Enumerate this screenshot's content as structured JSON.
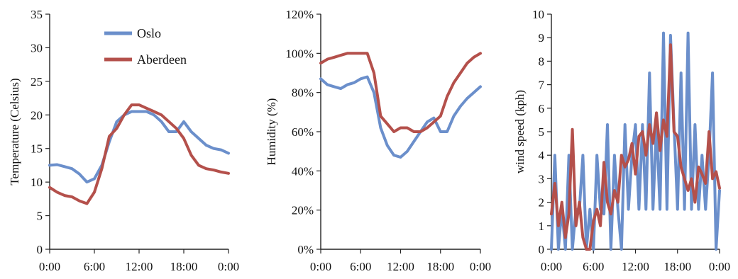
{
  "colors": {
    "oslo": "#6b8fcb",
    "aberdeen": "#b4504b"
  },
  "legend": [
    "Oslo",
    "Aberdeen"
  ],
  "chart_data": [
    {
      "type": "line",
      "ylabel": "Temperature (Celsius)",
      "ylim": [
        0,
        35
      ],
      "yticks": [
        "0",
        "5",
        "10",
        "15",
        "20",
        "25",
        "30",
        "35"
      ],
      "xlim": [
        0,
        24
      ],
      "xticks": [
        "0:00",
        "6:00",
        "12:00",
        "18:00",
        "0:00"
      ],
      "legend_placement": "top-left",
      "series": [
        {
          "name": "Oslo",
          "x": [
            0,
            1,
            2,
            3,
            4,
            5,
            6,
            7,
            8,
            9,
            10,
            11,
            12,
            13,
            14,
            15,
            16,
            17,
            18,
            19,
            20,
            21,
            22,
            23,
            24
          ],
          "y": [
            12.5,
            12.6,
            12.3,
            12.0,
            11.2,
            10.0,
            10.5,
            12.5,
            16.0,
            19.0,
            20.0,
            20.5,
            20.5,
            20.5,
            20.0,
            19.0,
            17.5,
            17.5,
            19.0,
            17.5,
            16.5,
            15.5,
            15.0,
            14.8,
            14.3
          ]
        },
        {
          "name": "Aberdeen",
          "x": [
            0,
            1,
            2,
            3,
            4,
            5,
            6,
            7,
            8,
            9,
            10,
            11,
            12,
            13,
            14,
            15,
            16,
            17,
            18,
            19,
            20,
            21,
            22,
            23,
            24
          ],
          "y": [
            9.2,
            8.5,
            8.0,
            7.8,
            7.2,
            6.8,
            8.5,
            12.0,
            16.8,
            18.0,
            20.0,
            21.5,
            21.5,
            21.0,
            20.5,
            20.0,
            19.0,
            18.0,
            16.5,
            14.0,
            12.5,
            12.0,
            11.8,
            11.5,
            11.3
          ]
        }
      ]
    },
    {
      "type": "line",
      "ylabel": "Humidity (%)",
      "ylim": [
        0,
        120
      ],
      "yticks": [
        "0%",
        "20%",
        "40%",
        "60%",
        "80%",
        "100%",
        "120%"
      ],
      "xlim": [
        0,
        24
      ],
      "xticks": [
        "0:00",
        "6:00",
        "12:00",
        "18:00",
        "0:00"
      ],
      "series": [
        {
          "name": "Oslo",
          "x": [
            0,
            1,
            2,
            3,
            4,
            5,
            6,
            7,
            8,
            9,
            10,
            11,
            12,
            13,
            14,
            15,
            16,
            17,
            18,
            19,
            20,
            21,
            22,
            23,
            24
          ],
          "y": [
            87,
            84,
            83,
            82,
            84,
            85,
            87,
            88,
            80,
            62,
            53,
            48,
            47,
            50,
            55,
            60,
            65,
            67,
            60,
            60,
            68,
            73,
            77,
            80,
            83
          ]
        },
        {
          "name": "Aberdeen",
          "x": [
            0,
            1,
            2,
            3,
            4,
            5,
            6,
            7,
            8,
            9,
            10,
            11,
            12,
            13,
            14,
            15,
            16,
            17,
            18,
            19,
            20,
            21,
            22,
            23,
            24
          ],
          "y": [
            95,
            97,
            98,
            99,
            100,
            100,
            100,
            100,
            90,
            68,
            64,
            60,
            62,
            62,
            60,
            60,
            62,
            65,
            68,
            78,
            85,
            90,
            95,
            98,
            100
          ]
        }
      ]
    },
    {
      "type": "line",
      "ylabel": "wind speed (kph)",
      "ylim": [
        0,
        10
      ],
      "yticks": [
        "0",
        "1",
        "2",
        "3",
        "4",
        "5",
        "6",
        "7",
        "8",
        "9",
        "10"
      ],
      "xlim": [
        0,
        24
      ],
      "xticks": [
        "0:00",
        "6:00",
        "12:00",
        "18:00",
        "0:00"
      ],
      "series": [
        {
          "name": "Oslo",
          "x": [
            0,
            0.5,
            1,
            1.5,
            2,
            2.5,
            3,
            3.5,
            4,
            4.5,
            5,
            5.5,
            6,
            6.5,
            7,
            7.5,
            8,
            8.5,
            9,
            9.5,
            10,
            10.5,
            11,
            11.5,
            12,
            12.5,
            13,
            13.5,
            14,
            14.5,
            15,
            15.5,
            16,
            16.5,
            17,
            17.5,
            18,
            18.5,
            19,
            19.5,
            20,
            20.5,
            21,
            21.5,
            22,
            22.5,
            23,
            23.5,
            24
          ],
          "y": [
            0,
            4,
            0,
            1.7,
            0,
            4,
            0,
            1.7,
            1.7,
            4,
            0,
            1.7,
            0,
            4,
            1.7,
            1.5,
            5.3,
            0,
            4,
            1.7,
            0,
            5.3,
            1.7,
            4,
            5.3,
            1.7,
            5.3,
            1.7,
            7.5,
            1.7,
            5.3,
            1.7,
            9.2,
            1.7,
            9.1,
            5.3,
            1.7,
            7.5,
            1.7,
            9.2,
            1.7,
            5.3,
            1.7,
            4,
            1.7,
            4,
            7.5,
            0,
            2.5
          ]
        },
        {
          "name": "Aberdeen",
          "x": [
            0,
            0.5,
            1,
            1.5,
            2,
            2.5,
            3,
            3.5,
            4,
            4.5,
            5,
            5.5,
            6,
            6.5,
            7,
            7.5,
            8,
            8.5,
            9,
            9.5,
            10,
            10.5,
            11,
            11.5,
            12,
            12.5,
            13,
            13.5,
            14,
            14.5,
            15,
            15.5,
            16,
            16.5,
            17,
            17.5,
            18,
            18.5,
            19,
            19.5,
            20,
            20.5,
            21,
            21.5,
            22,
            22.5,
            23,
            23.5,
            24
          ],
          "y": [
            1.5,
            2.8,
            1.0,
            2.0,
            0.5,
            1.5,
            5.1,
            1.0,
            2.0,
            0.5,
            0.0,
            0.0,
            1.2,
            1.7,
            1.0,
            3.7,
            2.0,
            1.5,
            2.5,
            2.0,
            4.0,
            3.5,
            3.8,
            4.5,
            3.2,
            4.8,
            5.0,
            4.0,
            5.3,
            4.5,
            5.8,
            4.2,
            5.5,
            4.8,
            8.7,
            5.0,
            4.8,
            3.5,
            3.0,
            2.5,
            3.0,
            2.0,
            3.5,
            3.2,
            2.8,
            5.0,
            3.0,
            3.3,
            2.6
          ]
        }
      ]
    }
  ]
}
